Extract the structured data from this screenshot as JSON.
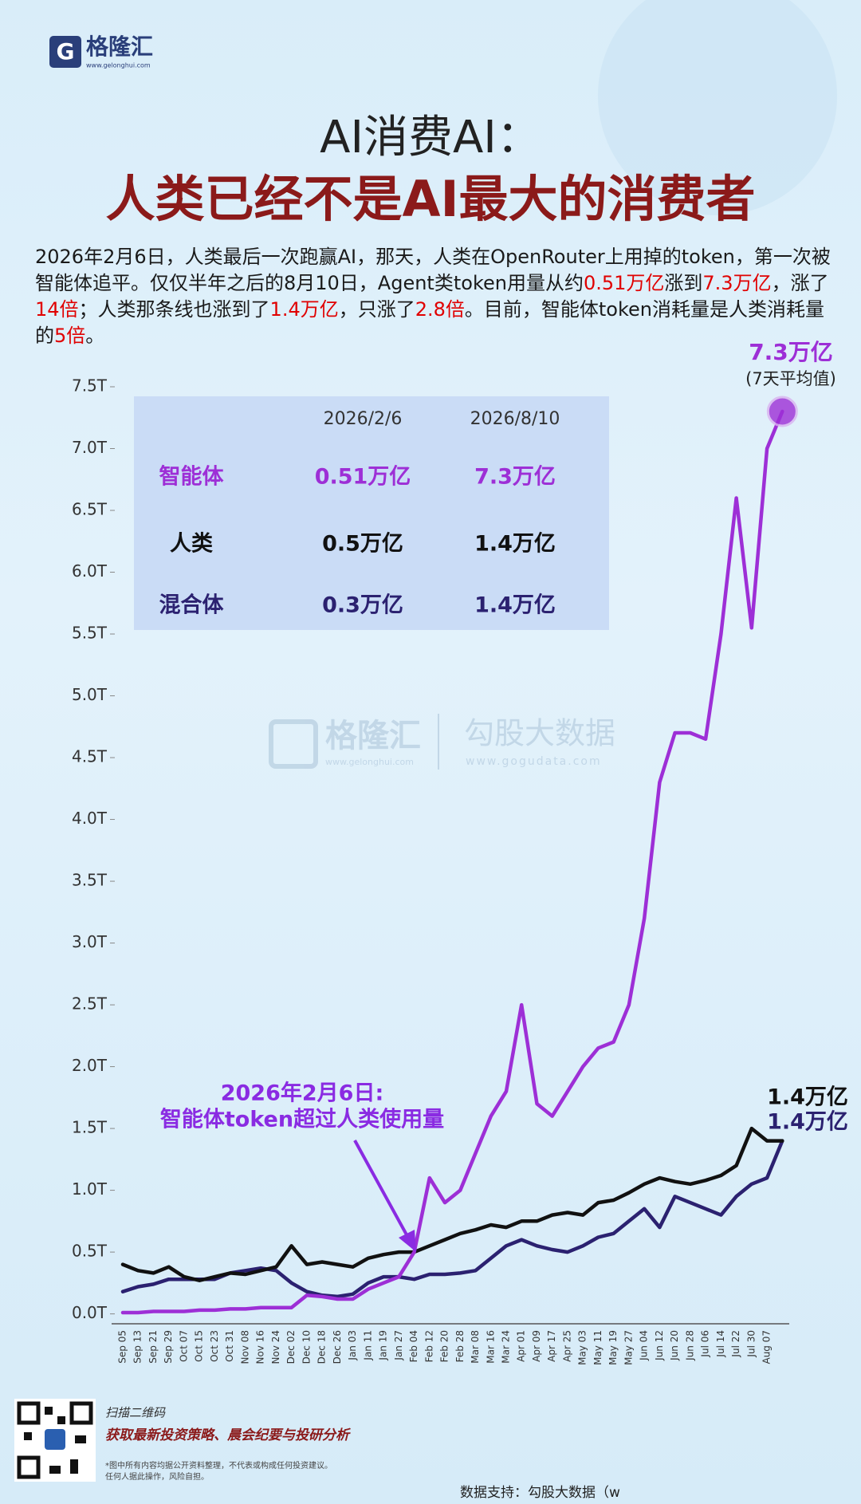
{
  "header": {
    "logo": "格隆汇",
    "logo_url": "www.gelonghui.com",
    "title_line1": "AI消费AI：",
    "title_line2": "人类已经不是AI最大的消费者"
  },
  "intro": [
    {
      "text": "2026年2月6日，人类最后一次跑赢AI，那天，人类在OpenRouter上用掉的token，第一次被智能体追平。仅仅半年之后的8月10日，Agent类token用量从约",
      "color": "#1a1a1a"
    },
    {
      "text": "0.51万亿",
      "color": "#e00000"
    },
    {
      "text": "涨到",
      "color": "#1a1a1a"
    },
    {
      "text": "7.3万亿",
      "color": "#e00000"
    },
    {
      "text": "，涨了",
      "color": "#1a1a1a"
    },
    {
      "text": "14倍",
      "color": "#e00000"
    },
    {
      "text": "；人类那条线也涨到了",
      "color": "#1a1a1a"
    },
    {
      "text": "1.4万亿",
      "color": "#e00000"
    },
    {
      "text": "，只涨了",
      "color": "#1a1a1a"
    },
    {
      "text": "2.8倍",
      "color": "#e00000"
    },
    {
      "text": "。目前，智能体token消耗量是人类消耗量的",
      "color": "#1a1a1a"
    },
    {
      "text": "5倍",
      "color": "#e00000"
    },
    {
      "text": "。",
      "color": "#1a1a1a"
    }
  ],
  "chart_data": {
    "type": "line",
    "categories": [
      "Sep 05",
      "Sep 13",
      "Sep 21",
      "Sep 29",
      "Oct 07",
      "Oct 15",
      "Oct 23",
      "Oct 31",
      "Nov 08",
      "Nov 16",
      "Nov 24",
      "Dec 02",
      "Dec 10",
      "Dec 18",
      "Dec 26",
      "Jan 03",
      "Jan 11",
      "Jan 19",
      "Jan 27",
      "Feb 04",
      "Feb 12",
      "Feb 20",
      "Feb 28",
      "Mar 08",
      "Mar 16",
      "Mar 24",
      "Apr 01",
      "Apr 09",
      "Apr 17",
      "Apr 25",
      "May 03",
      "May 11",
      "May 19",
      "May 27",
      "Jun 04",
      "Jun 12",
      "Jun 20",
      "Jun 28",
      "Jul 06",
      "Jul 14",
      "Jul 22",
      "Jul 30",
      "Aug 07",
      null
    ],
    "series": [
      {
        "name": "智能体",
        "color": "#9d2fd6",
        "values": [
          0.01,
          0.01,
          0.02,
          0.02,
          0.02,
          0.03,
          0.03,
          0.04,
          0.04,
          0.05,
          0.05,
          0.05,
          0.15,
          0.14,
          0.12,
          0.12,
          0.2,
          0.25,
          0.3,
          0.5,
          1.1,
          0.9,
          1.0,
          1.3,
          1.6,
          1.8,
          2.5,
          1.7,
          1.6,
          1.8,
          2.0,
          2.15,
          2.2,
          2.5,
          3.2,
          4.3,
          4.7,
          4.7,
          4.65,
          5.5,
          6.6,
          5.55,
          7.0,
          7.3
        ]
      },
      {
        "name": "人类",
        "color": "#111111",
        "values": [
          0.4,
          0.35,
          0.33,
          0.38,
          0.3,
          0.27,
          0.3,
          0.33,
          0.32,
          0.35,
          0.38,
          0.55,
          0.4,
          0.42,
          0.4,
          0.38,
          0.45,
          0.48,
          0.5,
          0.5,
          0.55,
          0.6,
          0.65,
          0.68,
          0.72,
          0.7,
          0.75,
          0.75,
          0.8,
          0.82,
          0.8,
          0.9,
          0.92,
          0.98,
          1.05,
          1.1,
          1.07,
          1.05,
          1.08,
          1.12,
          1.2,
          1.5,
          1.4,
          1.4
        ]
      },
      {
        "name": "混合体",
        "color": "#2b2170",
        "values": [
          0.18,
          0.22,
          0.24,
          0.28,
          0.28,
          0.28,
          0.28,
          0.33,
          0.35,
          0.37,
          0.35,
          0.25,
          0.18,
          0.15,
          0.14,
          0.16,
          0.25,
          0.3,
          0.3,
          0.28,
          0.32,
          0.32,
          0.33,
          0.35,
          0.45,
          0.55,
          0.6,
          0.55,
          0.52,
          0.5,
          0.55,
          0.62,
          0.65,
          0.75,
          0.85,
          0.7,
          0.95,
          0.9,
          0.85,
          0.8,
          0.95,
          1.05,
          1.1,
          1.4
        ]
      }
    ],
    "ylim": [
      -0.08,
      7.7
    ],
    "yticks": [
      {
        "value": 0,
        "label": "0.0T"
      },
      {
        "value": 0.5,
        "label": "0.5T"
      },
      {
        "value": 1,
        "label": "1.0T"
      },
      {
        "value": 1.5,
        "label": "1.5T"
      },
      {
        "value": 2,
        "label": "2.0T"
      },
      {
        "value": 2.5,
        "label": "2.5T"
      },
      {
        "value": 3,
        "label": "3.0T"
      },
      {
        "value": 3.5,
        "label": "3.5T"
      },
      {
        "value": 4,
        "label": "4.0T"
      },
      {
        "value": 4.5,
        "label": "4.5T"
      },
      {
        "value": 5,
        "label": "5.0T"
      },
      {
        "value": 5.5,
        "label": "5.5T"
      },
      {
        "value": 6,
        "label": "6.0T"
      },
      {
        "value": 6.5,
        "label": "6.5T"
      },
      {
        "value": 7,
        "label": "7.0T"
      },
      {
        "value": 7.5,
        "label": "7.5T"
      }
    ],
    "grid": false,
    "annotations": {
      "agent_end": "7.3万亿",
      "agent_note": "(7天平均值)",
      "human_end": "1.4万亿",
      "hybrid_end": "1.4万亿",
      "crossover": [
        "2026年2月6日:",
        "智能体token超过人类使用量"
      ]
    }
  },
  "table": {
    "columns": [
      "2026/2/6",
      "2026/8/10"
    ],
    "rows": [
      [
        "0.51万亿",
        "7.3万亿"
      ],
      [
        "0.5万亿",
        "1.4万亿"
      ],
      [
        "0.3万亿",
        "1.4万亿"
      ]
    ]
  },
  "watermark": {
    "left": "格隆汇",
    "left_url": "www.gelonghui.com",
    "right": "勾股大数据",
    "right_url": "www.gogudata.com"
  },
  "footer": {
    "scan": "扫描二维码",
    "promo": "获取最新投资策略、晨会纪要与投研分析",
    "disclaimer": [
      "*图中所有内容均据公开资料整理，不代表或构成任何投资建议。",
      "任何人据此操作，风险自担。"
    ],
    "source": "数据支持：勾股大数据（w"
  }
}
